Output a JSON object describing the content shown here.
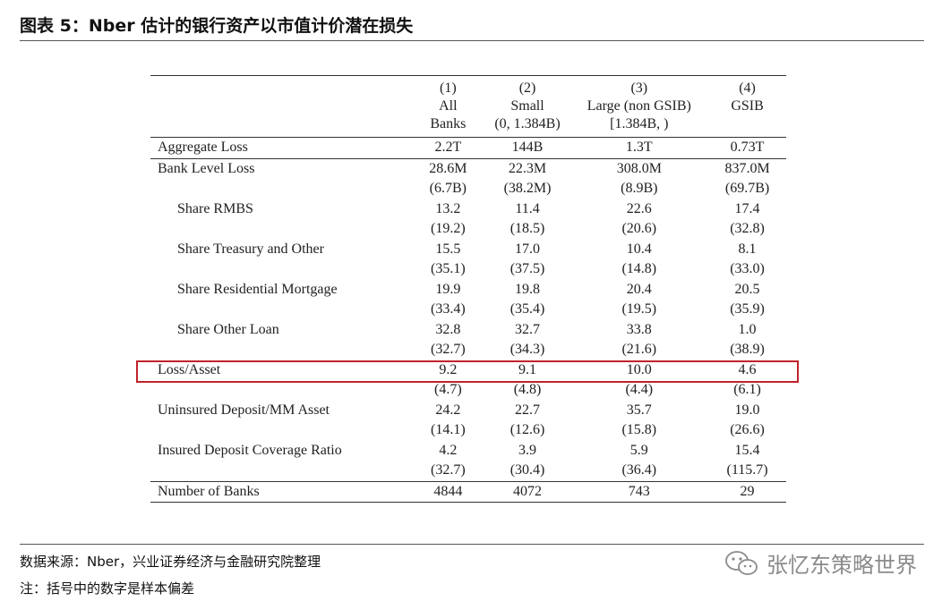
{
  "title": "图表 5：Nber 估计的银行资产以市值计价潜在损失",
  "table": {
    "headers": [
      {
        "num": "(1)",
        "line1": "All",
        "line2": "Banks"
      },
      {
        "num": "(2)",
        "line1": "Small",
        "line2": "(0, 1.384B)"
      },
      {
        "num": "(3)",
        "line1": "Large (non GSIB)",
        "line2": "[1.384B, )"
      },
      {
        "num": "(4)",
        "line1": "GSIB",
        "line2": ""
      }
    ],
    "rows": [
      {
        "label": "Aggregate Loss",
        "values": [
          "2.2T",
          "144B",
          "1.3T",
          "0.73T"
        ]
      },
      {
        "label": "Bank Level Loss",
        "values": [
          "28.6M",
          "22.3M",
          "308.0M",
          "837.0M"
        ],
        "se": [
          "(6.7B)",
          "(38.2M)",
          "(8.9B)",
          "(69.7B)"
        ]
      },
      {
        "label": "Share RMBS",
        "values": [
          "13.2",
          "11.4",
          "22.6",
          "17.4"
        ],
        "se": [
          "(19.2)",
          "(18.5)",
          "(20.6)",
          "(32.8)"
        ]
      },
      {
        "label": "Share Treasury and Other",
        "values": [
          "15.5",
          "17.0",
          "10.4",
          "8.1"
        ],
        "se": [
          "(35.1)",
          "(37.5)",
          "(14.8)",
          "(33.0)"
        ]
      },
      {
        "label": "Share Residential Mortgage",
        "values": [
          "19.9",
          "19.8",
          "20.4",
          "20.5"
        ],
        "se": [
          "(33.4)",
          "(35.4)",
          "(19.5)",
          "(35.9)"
        ]
      },
      {
        "label": "Share Other Loan",
        "values": [
          "32.8",
          "32.7",
          "33.8",
          "1.0"
        ],
        "se": [
          "(32.7)",
          "(34.3)",
          "(21.6)",
          "(38.9)"
        ]
      },
      {
        "label": "Loss/Asset",
        "values": [
          "9.2",
          "9.1",
          "10.0",
          "4.6"
        ],
        "se": [
          "(4.7)",
          "(4.8)",
          "(4.4)",
          "(6.1)"
        ]
      },
      {
        "label": "Uninsured Deposit/MM Asset",
        "values": [
          "24.2",
          "22.7",
          "35.7",
          "19.0"
        ],
        "se": [
          "(14.1)",
          "(12.6)",
          "(15.8)",
          "(26.6)"
        ]
      },
      {
        "label": "Insured Deposit Coverage Ratio",
        "values": [
          "4.2",
          "3.9",
          "5.9",
          "15.4"
        ],
        "se": [
          "(32.7)",
          "(30.4)",
          "(36.4)",
          "(115.7)"
        ]
      },
      {
        "label": "Number of Banks",
        "values": [
          "4844",
          "4072",
          "743",
          "29"
        ]
      }
    ]
  },
  "source": "数据来源：Nber，兴业证券经济与金融研究院整理",
  "note": "注：括号中的数字是样本偏差",
  "watermark": {
    "text": "张忆东策略世界",
    "icon": "wechat-icon"
  },
  "colors": {
    "highlight": "#c0232c"
  }
}
